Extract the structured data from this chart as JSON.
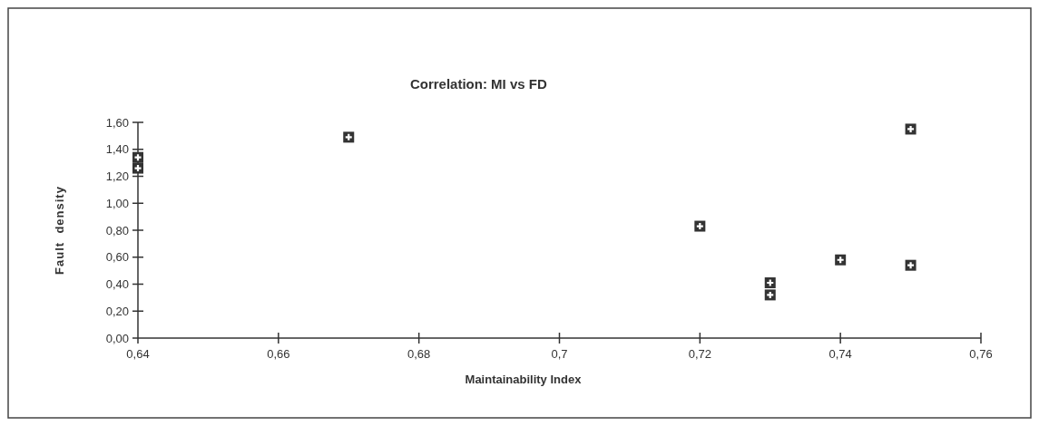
{
  "chart_data": {
    "type": "scatter",
    "title": "Correlation: MI vs FD",
    "xlabel": "Maintainability Index",
    "ylabel": "Fault  density",
    "marker": "square",
    "grid": false,
    "xlim": [
      0.64,
      0.76
    ],
    "xticks": [
      {
        "value": 0.64,
        "label": "0,64"
      },
      {
        "value": 0.66,
        "label": "0,66"
      },
      {
        "value": 0.68,
        "label": "0,68"
      },
      {
        "value": 0.7,
        "label": "0,7"
      },
      {
        "value": 0.72,
        "label": "0,72"
      },
      {
        "value": 0.74,
        "label": "0,74"
      },
      {
        "value": 0.76,
        "label": "0,76"
      }
    ],
    "ylim": [
      0,
      1.6
    ],
    "yticks": [
      {
        "value": 0,
        "label": "0,00"
      },
      {
        "value": 0.2,
        "label": "0,20"
      },
      {
        "value": 0.4,
        "label": "0,40"
      },
      {
        "value": 0.6,
        "label": "0,60"
      },
      {
        "value": 0.8,
        "label": "0,80"
      },
      {
        "value": 1,
        "label": "1,00"
      },
      {
        "value": 1.2,
        "label": "1,20"
      },
      {
        "value": 1.4,
        "label": "1,40"
      },
      {
        "value": 1.6,
        "label": "1,60"
      }
    ],
    "series": [
      {
        "color": "#333333",
        "x": [
          0.64,
          0.64,
          0.67,
          0.72,
          0.73,
          0.73,
          0.74,
          0.75,
          0.75
        ],
        "values": [
          1.34,
          1.26,
          1.49,
          0.83,
          0.41,
          0.32,
          0.58,
          0.54,
          1.55
        ]
      }
    ]
  }
}
